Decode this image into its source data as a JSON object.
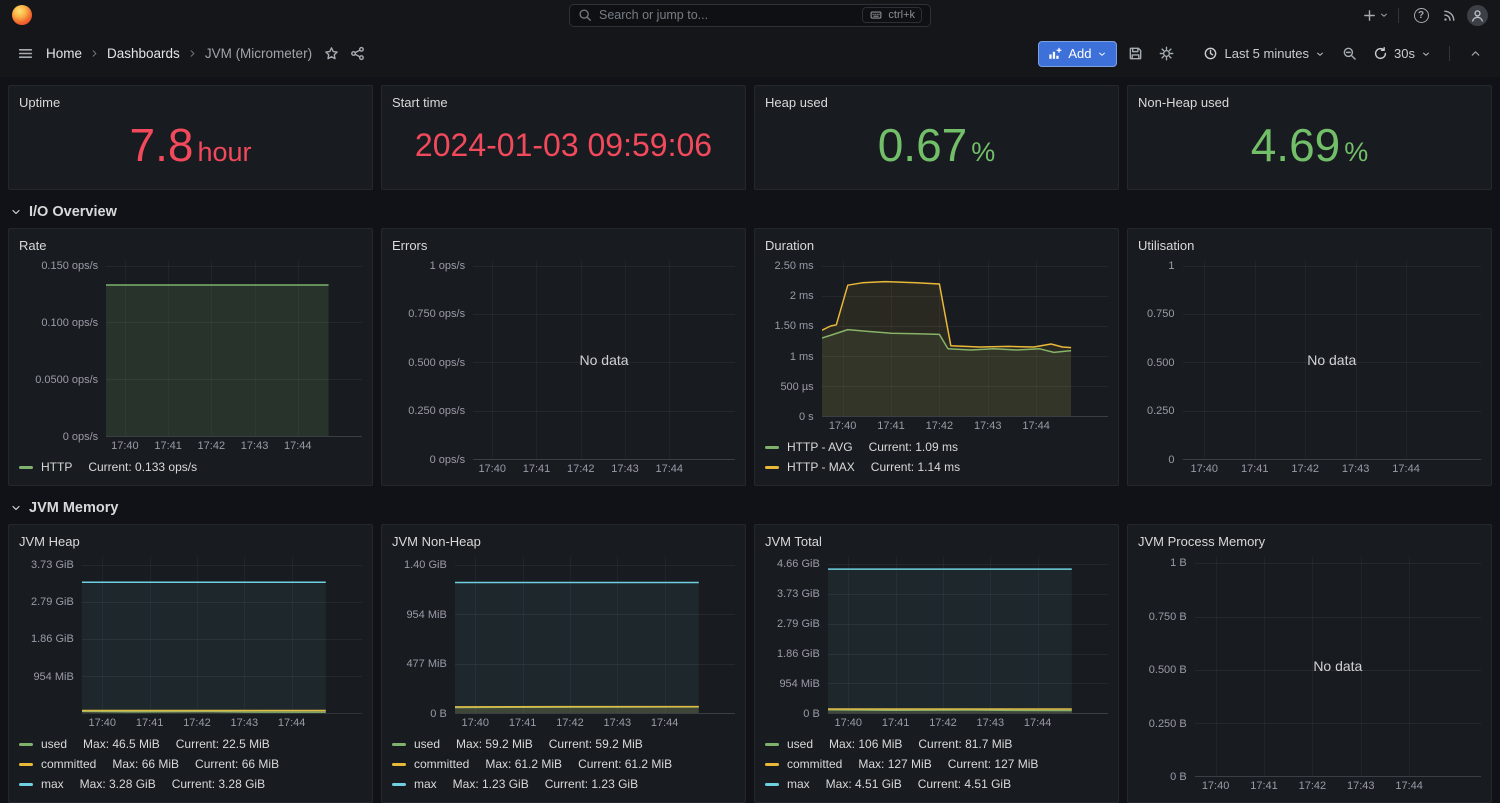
{
  "navbar": {
    "search_placeholder": "Search or jump to...",
    "shortcut": "ctrl+k"
  },
  "toolbar": {
    "breadcrumb": [
      "Home",
      "Dashboards",
      "JVM (Micrometer)"
    ],
    "add_label": "Add",
    "time_range": "Last 5 minutes",
    "refresh_interval": "30s"
  },
  "sections": [
    {
      "title": "I/O Overview"
    },
    {
      "title": "JVM Memory"
    }
  ],
  "colors": {
    "accent_blue": "#3d71d9",
    "stat_red": "#f2495c",
    "stat_green": "#73bf69",
    "series_green": "#7eb26d",
    "series_yellow": "#eab839",
    "series_cyan": "#6ed0e0"
  },
  "stats": [
    {
      "title": "Uptime",
      "value": "7.8",
      "unit": "hour",
      "color": "#f2495c",
      "size": "lg"
    },
    {
      "title": "Start time",
      "value": "2024-01-03 09:59:06",
      "unit": "",
      "color": "#f2495c",
      "size": "md"
    },
    {
      "title": "Heap used",
      "value": "0.67",
      "unit": "%",
      "color": "#73bf69",
      "size": "lg"
    },
    {
      "title": "Non-Heap used",
      "value": "4.69",
      "unit": "%",
      "color": "#73bf69",
      "size": "lg"
    }
  ],
  "time_axis": {
    "labels": [
      "17:40",
      "17:41",
      "17:42",
      "17:43",
      "17:44"
    ],
    "positions": [
      0.073,
      0.242,
      0.411,
      0.58,
      0.749
    ]
  },
  "chart_data": [
    {
      "title": "Rate",
      "type": "line",
      "ylim": [
        0,
        0.155
      ],
      "yticks": [
        {
          "label": "0.150 ops/s",
          "v": 0.15
        },
        {
          "label": "0.100 ops/s",
          "v": 0.1
        },
        {
          "label": "0.0500 ops/s",
          "v": 0.05
        },
        {
          "label": "0 ops/s",
          "v": 0
        }
      ],
      "series": [
        {
          "name": "HTTP",
          "color": "#7eb26d",
          "fill_opacity": 0.16,
          "points": [
            [
              0,
              0.133
            ],
            [
              0.87,
              0.133
            ]
          ]
        }
      ],
      "legend": [
        {
          "name": "HTTP",
          "color": "#7eb26d",
          "stats": [
            "Current: 0.133 ops/s"
          ]
        }
      ]
    },
    {
      "title": "Errors",
      "type": "line",
      "no_data": "No data",
      "ylim": [
        0,
        1.03
      ],
      "yticks": [
        {
          "label": "1 ops/s",
          "v": 1
        },
        {
          "label": "0.750 ops/s",
          "v": 0.75
        },
        {
          "label": "0.500 ops/s",
          "v": 0.5
        },
        {
          "label": "0.250 ops/s",
          "v": 0.25
        },
        {
          "label": "0 ops/s",
          "v": 0
        }
      ],
      "series": [],
      "legend": []
    },
    {
      "title": "Duration",
      "type": "line",
      "ylim": [
        0,
        2.6
      ],
      "yticks": [
        {
          "label": "2.50 ms",
          "v": 2.5
        },
        {
          "label": "2 ms",
          "v": 2
        },
        {
          "label": "1.50 ms",
          "v": 1.5
        },
        {
          "label": "1 ms",
          "v": 1
        },
        {
          "label": "500 µs",
          "v": 0.5
        },
        {
          "label": "0 s",
          "v": 0
        }
      ],
      "series": [
        {
          "name": "HTTP - AVG",
          "color": "#7eb26d",
          "fill_opacity": 0.09,
          "points": [
            [
              0,
              1.3
            ],
            [
              0.04,
              1.36
            ],
            [
              0.09,
              1.44
            ],
            [
              0.16,
              1.41
            ],
            [
              0.24,
              1.38
            ],
            [
              0.33,
              1.37
            ],
            [
              0.41,
              1.36
            ],
            [
              0.44,
              1.12
            ],
            [
              0.52,
              1.1
            ],
            [
              0.6,
              1.12
            ],
            [
              0.68,
              1.1
            ],
            [
              0.76,
              1.12
            ],
            [
              0.81,
              1.06
            ],
            [
              0.87,
              1.09
            ]
          ]
        },
        {
          "name": "HTTP - MAX",
          "color": "#eab839",
          "fill_opacity": 0.09,
          "points": [
            [
              0,
              1.43
            ],
            [
              0.03,
              1.5
            ],
            [
              0.05,
              1.52
            ],
            [
              0.09,
              2.18
            ],
            [
              0.14,
              2.22
            ],
            [
              0.22,
              2.24
            ],
            [
              0.33,
              2.22
            ],
            [
              0.41,
              2.2
            ],
            [
              0.45,
              1.17
            ],
            [
              0.55,
              1.15
            ],
            [
              0.65,
              1.16
            ],
            [
              0.74,
              1.15
            ],
            [
              0.8,
              1.2
            ],
            [
              0.84,
              1.15
            ],
            [
              0.87,
              1.14
            ]
          ]
        }
      ],
      "legend": [
        {
          "name": "HTTP - AVG",
          "color": "#7eb26d",
          "stats": [
            "Current: 1.09 ms"
          ]
        },
        {
          "name": "HTTP - MAX",
          "color": "#eab839",
          "stats": [
            "Current: 1.14 ms"
          ]
        }
      ]
    },
    {
      "title": "Utilisation",
      "type": "line",
      "no_data": "No data",
      "ylim": [
        0,
        1.03
      ],
      "yticks": [
        {
          "label": "1",
          "v": 1
        },
        {
          "label": "0.750",
          "v": 0.75
        },
        {
          "label": "0.500",
          "v": 0.5
        },
        {
          "label": "0.250",
          "v": 0.25
        },
        {
          "label": "0",
          "v": 0
        }
      ],
      "series": [],
      "legend": []
    },
    {
      "title": "JVM Heap",
      "type": "line",
      "ylim": [
        0,
        3.94
      ],
      "yticks": [
        {
          "label": "3.73 GiB",
          "v": 3.725
        },
        {
          "label": "2.79 GiB",
          "v": 2.794
        },
        {
          "label": "1.86 GiB",
          "v": 1.863
        },
        {
          "label": "954 MiB",
          "v": 0.931
        }
      ],
      "series": [
        {
          "name": "used",
          "color": "#7eb26d",
          "fill_opacity": 0.12,
          "points": [
            [
              0,
              0.045
            ],
            [
              0.2,
              0.03
            ],
            [
              0.45,
              0.038
            ],
            [
              0.6,
              0.024
            ],
            [
              0.87,
              0.022
            ]
          ]
        },
        {
          "name": "committed",
          "color": "#eab839",
          "fill_opacity": 0.12,
          "points": [
            [
              0,
              0.064
            ],
            [
              0.87,
              0.064
            ]
          ]
        },
        {
          "name": "max",
          "color": "#6ed0e0",
          "fill_opacity": 0.07,
          "points": [
            [
              0,
              3.28
            ],
            [
              0.87,
              3.28
            ]
          ]
        }
      ],
      "legend": [
        {
          "name": "used",
          "color": "#7eb26d",
          "stats": [
            "Max: 46.5 MiB",
            "Current: 22.5 MiB"
          ]
        },
        {
          "name": "committed",
          "color": "#eab839",
          "stats": [
            "Max: 66 MiB",
            "Current: 66 MiB"
          ]
        },
        {
          "name": "max",
          "color": "#6ed0e0",
          "stats": [
            "Max: 3.28 GiB",
            "Current: 3.28 GiB"
          ]
        }
      ]
    },
    {
      "title": "JVM Non-Heap",
      "type": "line",
      "ylim": [
        0,
        1.48
      ],
      "yticks": [
        {
          "label": "1.40 GiB",
          "v": 1.397
        },
        {
          "label": "954 MiB",
          "v": 0.931
        },
        {
          "label": "477 MiB",
          "v": 0.466
        },
        {
          "label": "0 B",
          "v": 0
        }
      ],
      "series": [
        {
          "name": "used",
          "color": "#7eb26d",
          "fill_opacity": 0.12,
          "points": [
            [
              0,
              0.052
            ],
            [
              0.4,
              0.056
            ],
            [
              0.87,
              0.058
            ]
          ]
        },
        {
          "name": "committed",
          "color": "#eab839",
          "fill_opacity": 0.12,
          "points": [
            [
              0,
              0.058
            ],
            [
              0.4,
              0.06
            ],
            [
              0.87,
              0.06
            ]
          ]
        },
        {
          "name": "max",
          "color": "#6ed0e0",
          "fill_opacity": 0.07,
          "points": [
            [
              0,
              1.23
            ],
            [
              0.87,
              1.23
            ]
          ]
        }
      ],
      "legend": [
        {
          "name": "used",
          "color": "#7eb26d",
          "stats": [
            "Max: 59.2 MiB",
            "Current: 59.2 MiB"
          ]
        },
        {
          "name": "committed",
          "color": "#eab839",
          "stats": [
            "Max: 61.2 MiB",
            "Current: 61.2 MiB"
          ]
        },
        {
          "name": "max",
          "color": "#6ed0e0",
          "stats": [
            "Max: 1.23 GiB",
            "Current: 1.23 GiB"
          ]
        }
      ]
    },
    {
      "title": "JVM Total",
      "type": "line",
      "ylim": [
        0,
        4.92
      ],
      "yticks": [
        {
          "label": "4.66 GiB",
          "v": 4.657
        },
        {
          "label": "3.73 GiB",
          "v": 3.725
        },
        {
          "label": "2.79 GiB",
          "v": 2.794
        },
        {
          "label": "1.86 GiB",
          "v": 1.863
        },
        {
          "label": "954 MiB",
          "v": 0.931
        },
        {
          "label": "0 B",
          "v": 0
        }
      ],
      "series": [
        {
          "name": "used",
          "color": "#7eb26d",
          "fill_opacity": 0.12,
          "points": [
            [
              0,
              0.102
            ],
            [
              0.25,
              0.085
            ],
            [
              0.5,
              0.095
            ],
            [
              0.7,
              0.082
            ],
            [
              0.87,
              0.08
            ]
          ]
        },
        {
          "name": "committed",
          "color": "#eab839",
          "fill_opacity": 0.12,
          "points": [
            [
              0,
              0.124
            ],
            [
              0.87,
              0.124
            ]
          ]
        },
        {
          "name": "max",
          "color": "#6ed0e0",
          "fill_opacity": 0.07,
          "points": [
            [
              0,
              4.51
            ],
            [
              0.87,
              4.51
            ]
          ]
        }
      ],
      "legend": [
        {
          "name": "used",
          "color": "#7eb26d",
          "stats": [
            "Max: 106 MiB",
            "Current: 81.7 MiB"
          ]
        },
        {
          "name": "committed",
          "color": "#eab839",
          "stats": [
            "Max: 127 MiB",
            "Current: 127 MiB"
          ]
        },
        {
          "name": "max",
          "color": "#6ed0e0",
          "stats": [
            "Max: 4.51 GiB",
            "Current: 4.51 GiB"
          ]
        }
      ]
    },
    {
      "title": "JVM Process Memory",
      "type": "line",
      "no_data": "No data",
      "ylim": [
        0,
        1.035
      ],
      "yticks": [
        {
          "label": "1 B",
          "v": 1
        },
        {
          "label": "0.750 B",
          "v": 0.75
        },
        {
          "label": "0.500 B",
          "v": 0.5
        },
        {
          "label": "0.250 B",
          "v": 0.25
        },
        {
          "label": "0 B",
          "v": 0
        }
      ],
      "series": [],
      "legend": []
    }
  ]
}
